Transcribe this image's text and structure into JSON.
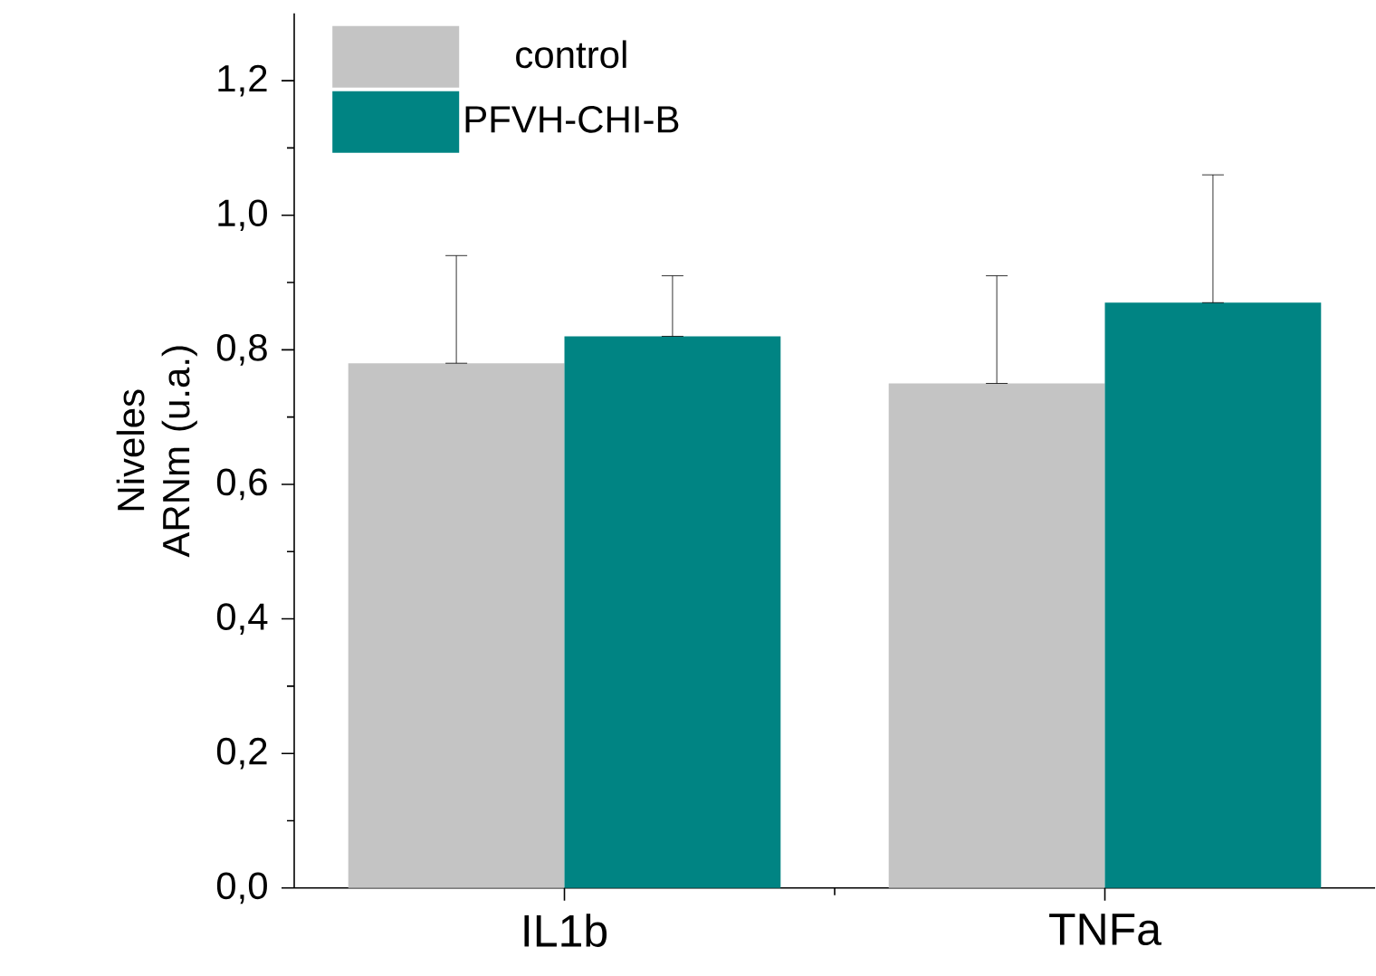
{
  "chart_data": {
    "type": "bar",
    "ylabel": "Niveles ARNm (u.a.)",
    "categories": [
      "IL1b",
      "TNFa"
    ],
    "series": [
      {
        "name": "control",
        "color": "#c4c4c4",
        "values": [
          0.78,
          0.75
        ],
        "errors": [
          [
            0.78,
            0.94
          ],
          [
            0.75,
            0.91
          ]
        ]
      },
      {
        "name": "PFVH-CHI-B",
        "color": "#008483",
        "values": [
          0.82,
          0.87
        ],
        "errors": [
          [
            0.82,
            0.91
          ],
          [
            0.87,
            1.06
          ]
        ]
      }
    ],
    "ylim": [
      0,
      1.3
    ],
    "yticks": [
      {
        "value": 0,
        "label": "0,0"
      },
      {
        "value": 0.2,
        "label": "0,2"
      },
      {
        "value": 0.4,
        "label": "0,4"
      },
      {
        "value": 0.6,
        "label": "0,6"
      },
      {
        "value": 0.8,
        "label": "0,8"
      },
      {
        "value": 1.0,
        "label": "1,0"
      },
      {
        "value": 1.2,
        "label": "1,2"
      }
    ],
    "legend": "top left",
    "grid": false
  }
}
